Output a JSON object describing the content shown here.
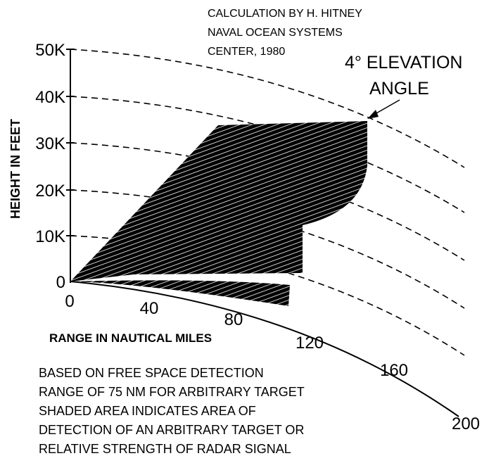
{
  "annotation": {
    "lines": [
      "CALCULATION BY H. HITNEY",
      "NAVAL OCEAN SYSTEMS",
      "CENTER, 1980"
    ]
  },
  "elevation_label": {
    "lines": [
      "4° ELEVATION",
      "ANGLE"
    ]
  },
  "y_axis": {
    "label": "HEIGHT IN FEET",
    "ticks": [
      "0",
      "10K",
      "20K",
      "30K",
      "40K",
      "50K"
    ]
  },
  "x_axis": {
    "label": "RANGE IN NAUTICAL MILES",
    "ticks": [
      "0",
      "40",
      "80",
      "120",
      "160",
      "200"
    ]
  },
  "notes": {
    "lines": [
      "BASED ON FREE SPACE DETECTION",
      "RANGE OF 75 NM FOR ARBITRARY TARGET",
      "SHADED AREA INDICATES AREA OF",
      "DETECTION OF AN ARBITRARY TARGET OR",
      "RELATIVE STRENGTH OF RADAR SIGNAL"
    ]
  }
}
